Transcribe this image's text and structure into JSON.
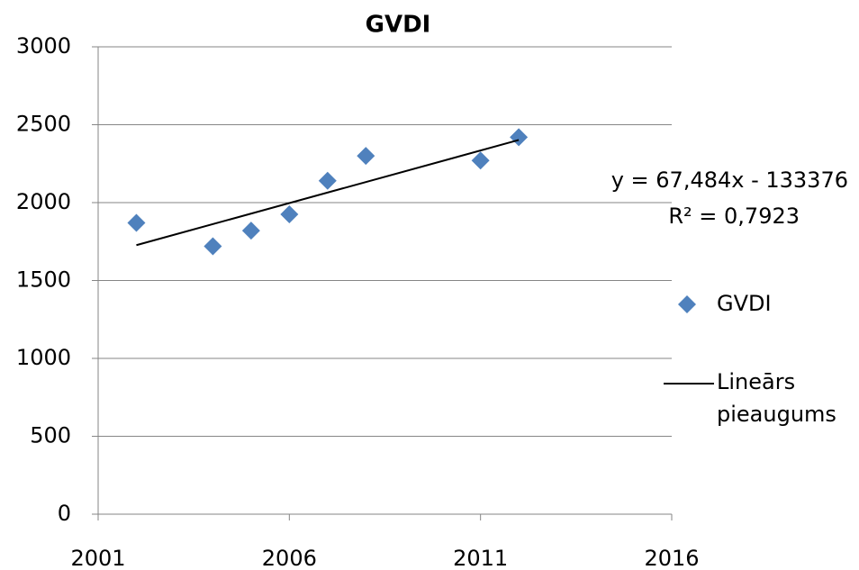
{
  "chart_data": {
    "type": "scatter",
    "title": "GVDI",
    "series": [
      {
        "name": "GVDI",
        "color": "#4f81bd",
        "x": [
          2002,
          2004,
          2005,
          2006,
          2007,
          2008,
          2011,
          2012
        ],
        "values": [
          1870,
          1720,
          1820,
          1925,
          2140,
          2300,
          2270,
          2420
        ]
      },
      {
        "name": "Lineārs pieaugums",
        "color": "#000000",
        "type": "line",
        "x": [
          2002,
          2012
        ],
        "values": [
          1727,
          2402
        ]
      }
    ],
    "annotations": [
      "y = 67,484x - 133376",
      "R² = 0,7923"
    ],
    "xlim": [
      2001,
      2016
    ],
    "xticks": [
      2001,
      2006,
      2011,
      2016
    ],
    "ylim": [
      0,
      3000
    ],
    "yticks": [
      0,
      500,
      1000,
      1500,
      2000,
      2500,
      3000
    ],
    "grid": true,
    "legend": "right"
  }
}
